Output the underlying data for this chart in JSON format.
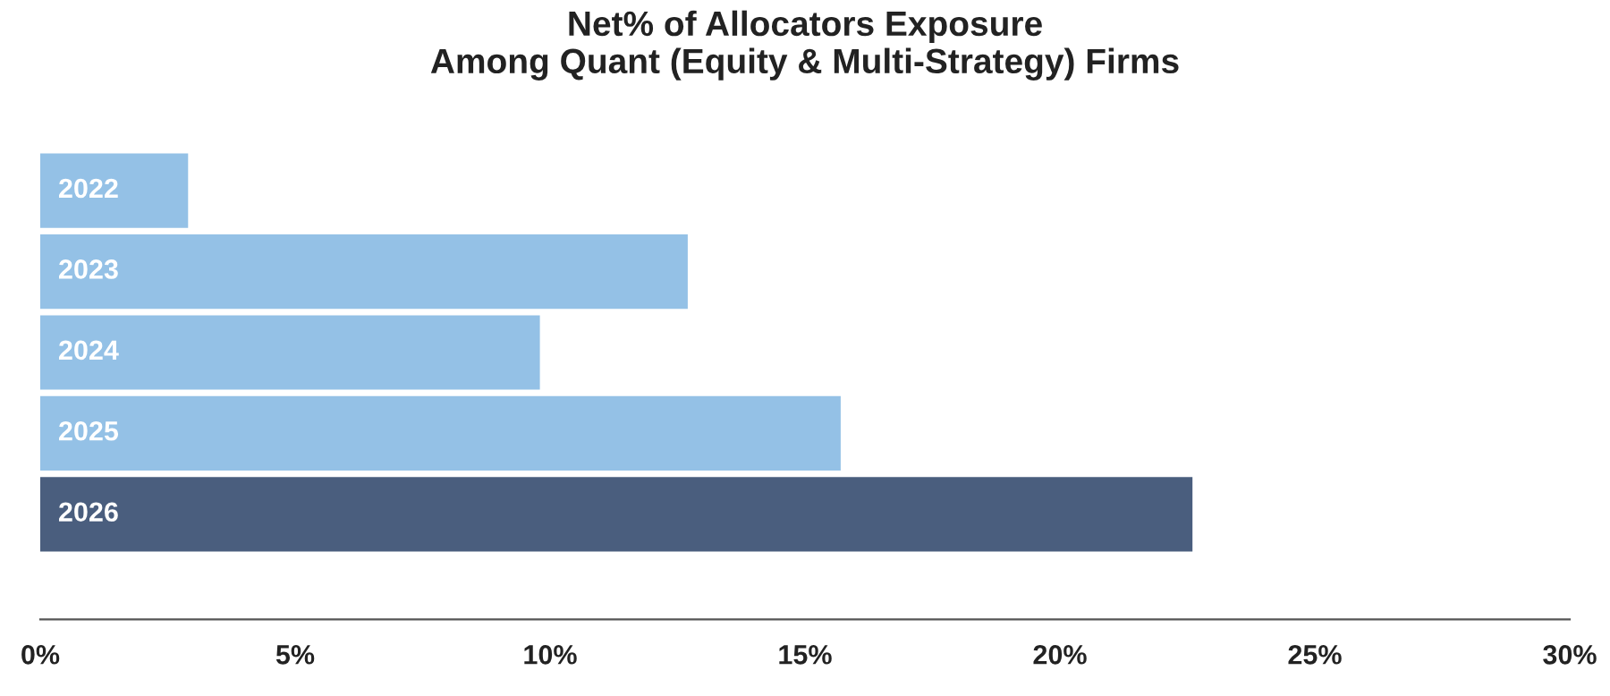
{
  "chart_data": {
    "type": "bar",
    "orientation": "horizontal",
    "title": "Net% of Allocators Exposure\nAmong Quant (Equity & Multi-Strategy) Firms",
    "categories": [
      "2022",
      "2023",
      "2024",
      "2025",
      "2026"
    ],
    "values": [
      2.9,
      12.7,
      9.8,
      15.7,
      22.6
    ],
    "colors": [
      "#94c1e6",
      "#94c1e6",
      "#94c1e6",
      "#94c1e6",
      "#4a5e7e"
    ],
    "xlim": [
      0,
      30
    ],
    "xticks": [
      {
        "value": 0,
        "label": "0%"
      },
      {
        "value": 5,
        "label": "5%"
      },
      {
        "value": 10,
        "label": "10%"
      },
      {
        "value": 15,
        "label": "15%"
      },
      {
        "value": 20,
        "label": "20%"
      },
      {
        "value": 25,
        "label": "25%"
      },
      {
        "value": 30,
        "label": "30%"
      }
    ],
    "grid": false,
    "legend": false
  }
}
